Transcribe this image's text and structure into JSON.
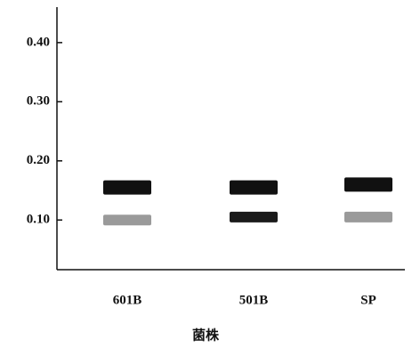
{
  "chart_data": {
    "type": "band",
    "x_label": "菌株",
    "categories": [
      "601B",
      "501B",
      "SP"
    ],
    "series": [
      {
        "color": "#111111",
        "colors": [
          "#111111",
          "#111111",
          "#111111"
        ],
        "values": [
          0.155,
          0.155,
          0.16
        ]
      },
      {
        "color": "#999999",
        "colors": [
          "#9a9a9a",
          "#1a1a1a",
          "#9a9a9a"
        ],
        "values": [
          0.1,
          0.105,
          0.105
        ]
      }
    ],
    "ylim": [
      0.016,
      0.46
    ],
    "yticks": [
      {
        "value": 0.1,
        "label": "0.10"
      },
      {
        "value": 0.2,
        "label": "0.20"
      },
      {
        "value": 0.3,
        "label": "0.30"
      },
      {
        "value": 0.4,
        "label": "0.40"
      }
    ]
  }
}
